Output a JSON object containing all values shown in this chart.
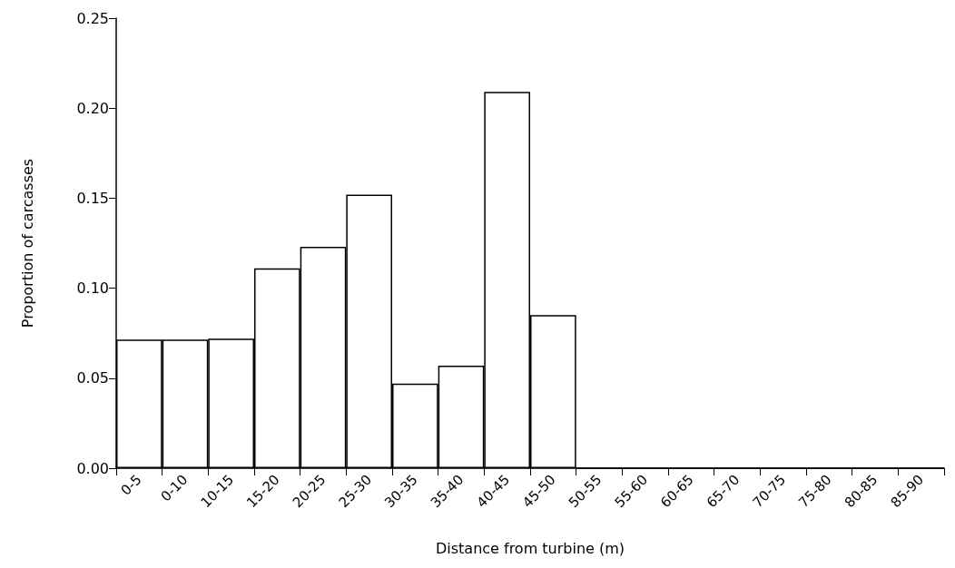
{
  "chart_data": {
    "type": "bar",
    "xlabel": "Distance from turbine (m)",
    "ylabel": "Proportion of carcasses",
    "categories": [
      "0-5",
      "0-10",
      "10-15",
      "15-20",
      "20-25",
      "25-30",
      "30-35",
      "35-40",
      "40-45",
      "45-50",
      "50-55",
      "55-60",
      "60-65",
      "65-70",
      "70-75",
      "75-80",
      "80-85",
      "85-90"
    ],
    "values": [
      0.0715,
      0.0715,
      0.072,
      0.111,
      0.123,
      0.152,
      0.047,
      0.057,
      0.209,
      0.085,
      0,
      0,
      0,
      0,
      0,
      0,
      0,
      0
    ],
    "color": "#ffffff",
    "ylim": [
      0,
      0.25
    ],
    "yticks": [
      {
        "value": 0,
        "label": "0.00"
      },
      {
        "value": 0.05,
        "label": "0.05"
      },
      {
        "value": 0.1,
        "label": "0.10"
      },
      {
        "value": 0.15,
        "label": "0.15"
      },
      {
        "value": 0.2,
        "label": "0.20"
      },
      {
        "value": 0.25,
        "label": "0.25"
      }
    ],
    "grid": false
  }
}
